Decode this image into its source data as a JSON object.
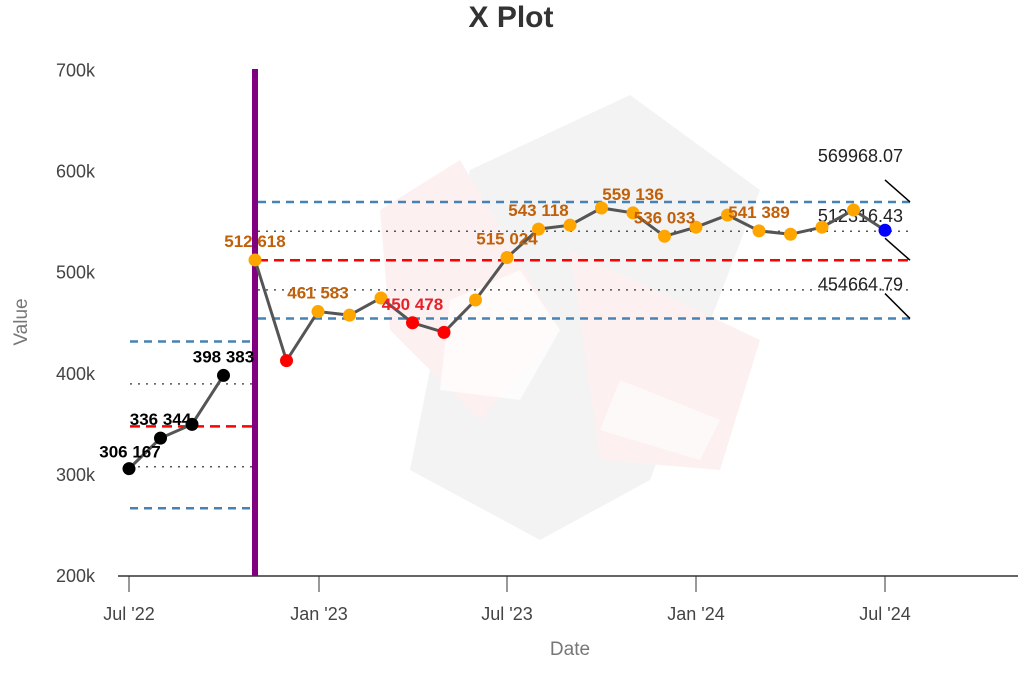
{
  "chart_data": {
    "type": "line",
    "title": "X Plot",
    "xlabel": "Date",
    "ylabel": "Value",
    "ylim": [
      200000,
      700000
    ],
    "y_ticks": [
      "200k",
      "300k",
      "400k",
      "500k",
      "600k",
      "700k"
    ],
    "x_ticks": [
      "Jul '22",
      "Jan '23",
      "Jul '23",
      "Jan '24",
      "Jul '24"
    ],
    "grid": false,
    "phase_break": {
      "after_index": 3,
      "color": "#800080"
    },
    "series": [
      {
        "name": "Values",
        "x": [
          "2022-07",
          "2022-08",
          "2022-09",
          "2022-10",
          "2022-11",
          "2022-12",
          "2023-01",
          "2023-02",
          "2023-03",
          "2023-04",
          "2023-05",
          "2023-06",
          "2023-07",
          "2023-08",
          "2023-09",
          "2023-10",
          "2023-11",
          "2023-12",
          "2024-01",
          "2024-02",
          "2024-03",
          "2024-04",
          "2024-05",
          "2024-06",
          "2024-07"
        ],
        "values": [
          306167,
          336344,
          350000,
          398383,
          512618,
          413000,
          461583,
          458000,
          475000,
          450478,
          441000,
          473000,
          515024,
          543118,
          547000,
          564000,
          559136,
          536033,
          545000,
          557000,
          541389,
          538000,
          545000,
          562000,
          542000
        ],
        "point_colors": [
          "#000000",
          "#000000",
          "#000000",
          "#000000",
          "#FFA500",
          "#FF0000",
          "#FFA500",
          "#FFA500",
          "#FFA500",
          "#FF0000",
          "#FF0000",
          "#FFA500",
          "#FFA500",
          "#FFA500",
          "#FFA500",
          "#FFA500",
          "#FFA500",
          "#FFA500",
          "#FFA500",
          "#FFA500",
          "#FFA500",
          "#FFA500",
          "#FFA500",
          "#FFA500",
          "#0000FF"
        ],
        "labels": {
          "0": "306 167",
          "1": "336 344",
          "3": "398 383",
          "4": "512 618",
          "6": "461 583",
          "9": "450 478",
          "12": "515 024",
          "13": "543 118",
          "16": "559 136",
          "17": "536 033",
          "20": "541 389"
        }
      }
    ],
    "phases": [
      {
        "ucl": 432000,
        "mean": 348000,
        "lcl": 267000,
        "upper_sigma": 390000,
        "lower_sigma": 308000
      },
      {
        "ucl": 569968.07,
        "mean": 512316.43,
        "lcl": 454664.79,
        "upper_sigma": 541000,
        "lower_sigma": 483000,
        "ucl_label": "569968.07",
        "mean_label": "512316.43",
        "lcl_label": "454664.79"
      }
    ],
    "colors": {
      "limit": "#4682B4",
      "mean": "#FF0000",
      "line": "#555555",
      "phase": "#800080",
      "label_in": "#C0600A",
      "label_out": "#E8202A"
    }
  }
}
